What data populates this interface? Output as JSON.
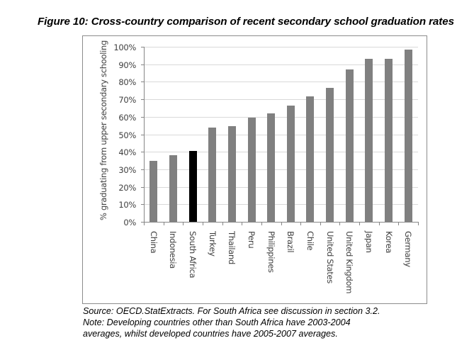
{
  "figure": {
    "title": "Figure 10: Cross-country comparison of recent secondary school graduation rates",
    "notes": [
      "Source: OECD.StatExtracts. For South Africa see discussion in section 3.2.",
      "Note: Developing countries other than South Africa have 2003-2004",
      "averages, whilst developed countries have 2005-2007 averages."
    ]
  },
  "colors": {
    "bar": "#808080",
    "highlight_bar": "#000000",
    "gridline": "#d9d9d9",
    "axis": "#868686"
  },
  "chart_data": {
    "type": "bar",
    "title": "Figure 10: Cross-country comparison of recent secondary school graduation rates",
    "xlabel": "",
    "ylabel": "% graduating from upper secondary schooling",
    "categories": [
      "China",
      "Indonesia",
      "South Africa",
      "Turkey",
      "Thailand",
      "Peru",
      "Philippines",
      "Brazil",
      "Chile",
      "United States",
      "United Kingdom",
      "Japan",
      "Korea",
      "Germany"
    ],
    "values": [
      35,
      38,
      40.5,
      54,
      54.5,
      59.5,
      62,
      66.5,
      71.5,
      76.5,
      87,
      93,
      93,
      98.5
    ],
    "highlighted_category": "South Africa",
    "yticks": [
      "0%",
      "10%",
      "20%",
      "30%",
      "40%",
      "50%",
      "60%",
      "70%",
      "80%",
      "90%",
      "100%"
    ],
    "ylim": [
      0,
      100
    ],
    "grid": true,
    "legend": null,
    "notes": [
      "Source: OECD.StatExtracts. For South Africa see discussion in section 3.2.",
      "Note: Developing countries other than South Africa have 2003-2004",
      "averages, whilst developed countries have 2005-2007 averages."
    ]
  }
}
